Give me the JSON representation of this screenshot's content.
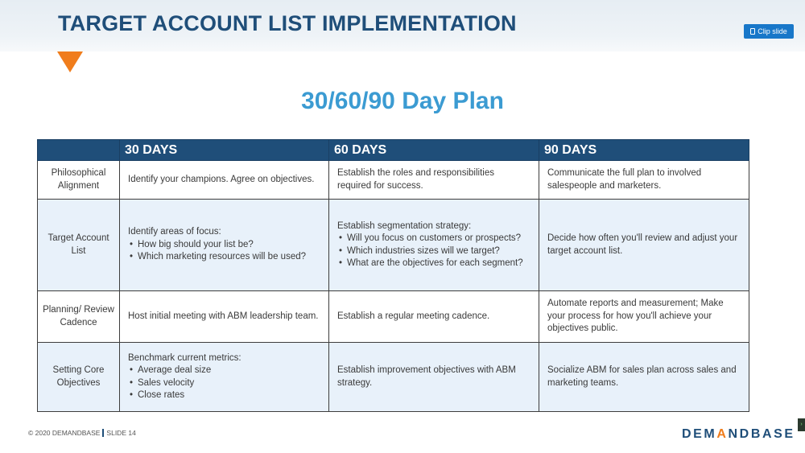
{
  "slide": {
    "title": "TARGET ACCOUNT LIST IMPLEMENTATION",
    "subtitle": "30/60/90 Day Plan",
    "clip_button_label": "Clip slide"
  },
  "table": {
    "columns": [
      "",
      "30 DAYS",
      "60 DAYS",
      "90 DAYS"
    ],
    "rows": [
      {
        "label": "Philosophical Alignment",
        "c30": {
          "intro": "Identify your champions. Agree on objectives.",
          "bullets": []
        },
        "c60": {
          "intro": "Establish the roles and responsibilities required for success.",
          "bullets": []
        },
        "c90": {
          "intro": "Communicate the full plan to involved salespeople and marketers.",
          "bullets": []
        }
      },
      {
        "label": "Target Account List",
        "c30": {
          "intro": "Identify areas of focus:",
          "bullets": [
            "How big should your list be?",
            "Which marketing resources will be used?"
          ]
        },
        "c60": {
          "intro": "Establish segmentation strategy:",
          "bullets": [
            "Will you focus on customers or prospects?",
            "Which industries sizes will we target?",
            "What are the objectives for each segment?"
          ]
        },
        "c90": {
          "intro": "Decide how often you'll review and adjust your target account list.",
          "bullets": []
        }
      },
      {
        "label": "Planning/ Review Cadence",
        "c30": {
          "intro": "Host initial meeting with ABM leadership team.",
          "bullets": []
        },
        "c60": {
          "intro": "Establish a regular meeting cadence.",
          "bullets": []
        },
        "c90": {
          "intro": "Automate reports and measurement; Make your process for how you'll achieve your objectives public.",
          "bullets": []
        }
      },
      {
        "label": "Setting Core Objectives",
        "c30": {
          "intro": "Benchmark current metrics:",
          "bullets": [
            "Average deal size",
            "Sales velocity",
            "Close rates"
          ]
        },
        "c60": {
          "intro": "Establish improvement objectives with ABM strategy.",
          "bullets": []
        },
        "c90": {
          "intro": "Socialize ABM for sales plan across sales and marketing teams.",
          "bullets": []
        }
      }
    ]
  },
  "footer": {
    "copyright": "© 2020 DEMANDBASE",
    "slide_number": "SLIDE 14"
  },
  "logo": {
    "text_before": "DEM",
    "accent_text": "A",
    "text_after": "NDBASE",
    "accent_color": "#f07d1c"
  },
  "colors": {
    "title": "#1f4e79",
    "subtitle": "#3b9bd2",
    "header_fill": "#1f4e79",
    "shaded_row": "#e8f1fa",
    "triangle": "#f07d1c",
    "clip_button": "#1877c9"
  }
}
